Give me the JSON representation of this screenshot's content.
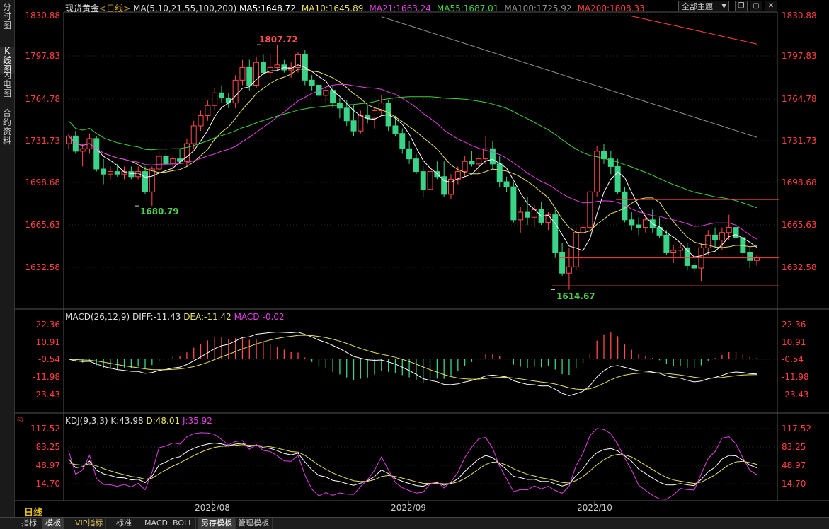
{
  "sidebar": {
    "tabs": [
      {
        "label": "分时图",
        "active": false
      },
      {
        "label": "K线图",
        "active": true
      },
      {
        "label": "闪电图",
        "active": false
      },
      {
        "label": "合约资料",
        "active": false
      }
    ]
  },
  "header": {
    "symbol": "现货黄金",
    "period_tag": "<日线>",
    "ma_params": "MA(5,10,21,55,100,200)",
    "ma": [
      {
        "label": "MA5:1648.72",
        "color": "#ffffff"
      },
      {
        "label": "MA10:1645.89",
        "color": "#e8e060"
      },
      {
        "label": "MA21:1663.24",
        "color": "#e040e0"
      },
      {
        "label": "MA55:1687.01",
        "color": "#40d040"
      },
      {
        "label": "MA100:1725.92",
        "color": "#909090"
      },
      {
        "label": "MA200:1808.33",
        "color": "#ff4040"
      }
    ],
    "theme_select": "全部主题",
    "buttons": [
      "restore-icon",
      "maximize-icon",
      "close-icon"
    ]
  },
  "price_panel": {
    "axis_labels": [
      "1830.88",
      "1797.83",
      "1764.78",
      "1731.73",
      "1698.68",
      "1665.63",
      "1632.58"
    ],
    "annotations": [
      {
        "text": "1807.72",
        "color": "#ff5050"
      },
      {
        "text": "1680.79",
        "color": "#50d050"
      },
      {
        "text": "1614.67",
        "color": "#50d050"
      }
    ]
  },
  "macd_panel": {
    "title": "MACD(26,12,9)",
    "diff": "DIFF:-11.43",
    "dea": "DEA:-11.42",
    "macd": "MACD:-0.02",
    "axis_labels": [
      "22.36",
      "10.91",
      "-0.54",
      "-11.98",
      "-23.43"
    ]
  },
  "kdj_panel": {
    "title": "KDJ(9,3,3)",
    "k": "K:43.98",
    "d": "D:48.01",
    "j": "J:35.92",
    "axis_labels": [
      "117.52",
      "83.25",
      "48.97",
      "14.70"
    ]
  },
  "time_axis": [
    "2022/08",
    "2022/09",
    "2022/10"
  ],
  "period": "日线",
  "bottom_tabs": [
    {
      "label": "指标",
      "active": false
    },
    {
      "label": "模板",
      "active": true
    },
    {
      "label": "VIP指标",
      "active": false,
      "vip": true
    },
    {
      "label": "标准",
      "active": false
    },
    {
      "label": "MACD",
      "active": false
    },
    {
      "label": "BOLL",
      "active": false
    },
    {
      "label": "另存模板",
      "active": true
    },
    {
      "label": "管理模板",
      "active": false
    }
  ],
  "chart_data": {
    "type": "candlestick",
    "x_labels": [
      "2022/08",
      "2022/09",
      "2022/10"
    ],
    "price_range": [
      1614.67,
      1830.88
    ],
    "candles": [
      [
        1730,
        1738,
        1726,
        1736
      ],
      [
        1736,
        1740,
        1722,
        1724
      ],
      [
        1724,
        1730,
        1712,
        1726
      ],
      [
        1726,
        1738,
        1722,
        1734
      ],
      [
        1734,
        1736,
        1708,
        1710
      ],
      [
        1710,
        1718,
        1698,
        1706
      ],
      [
        1706,
        1712,
        1702,
        1708
      ],
      [
        1708,
        1714,
        1704,
        1706
      ],
      [
        1706,
        1712,
        1702,
        1708
      ],
      [
        1708,
        1712,
        1702,
        1704
      ],
      [
        1704,
        1712,
        1702,
        1708
      ],
      [
        1708,
        1712,
        1690,
        1692
      ],
      [
        1692,
        1712,
        1681,
        1710
      ],
      [
        1710,
        1724,
        1706,
        1720
      ],
      [
        1720,
        1730,
        1712,
        1714
      ],
      [
        1714,
        1720,
        1708,
        1718
      ],
      [
        1718,
        1726,
        1714,
        1716
      ],
      [
        1716,
        1734,
        1712,
        1730
      ],
      [
        1730,
        1748,
        1726,
        1744
      ],
      [
        1744,
        1756,
        1740,
        1752
      ],
      [
        1752,
        1764,
        1748,
        1760
      ],
      [
        1760,
        1774,
        1756,
        1770
      ],
      [
        1770,
        1776,
        1762,
        1766
      ],
      [
        1766,
        1770,
        1758,
        1762
      ],
      [
        1762,
        1784,
        1758,
        1780
      ],
      [
        1780,
        1796,
        1776,
        1790
      ],
      [
        1790,
        1796,
        1772,
        1776
      ],
      [
        1776,
        1798,
        1774,
        1794
      ],
      [
        1794,
        1800,
        1784,
        1786
      ],
      [
        1786,
        1800,
        1782,
        1790
      ],
      [
        1790,
        1808,
        1788,
        1792
      ],
      [
        1792,
        1796,
        1786,
        1788
      ],
      [
        1788,
        1794,
        1782,
        1790
      ],
      [
        1790,
        1802,
        1786,
        1800
      ],
      [
        1800,
        1804,
        1776,
        1780
      ],
      [
        1780,
        1784,
        1772,
        1776
      ],
      [
        1776,
        1782,
        1764,
        1768
      ],
      [
        1768,
        1776,
        1762,
        1772
      ],
      [
        1772,
        1776,
        1758,
        1762
      ],
      [
        1762,
        1766,
        1750,
        1758
      ],
      [
        1758,
        1764,
        1744,
        1748
      ],
      [
        1748,
        1760,
        1736,
        1740
      ],
      [
        1740,
        1756,
        1738,
        1752
      ],
      [
        1752,
        1760,
        1746,
        1750
      ],
      [
        1750,
        1758,
        1742,
        1756
      ],
      [
        1756,
        1768,
        1752,
        1762
      ],
      [
        1762,
        1764,
        1740,
        1744
      ],
      [
        1744,
        1752,
        1736,
        1738
      ],
      [
        1738,
        1742,
        1722,
        1726
      ],
      [
        1726,
        1732,
        1714,
        1718
      ],
      [
        1718,
        1722,
        1706,
        1708
      ],
      [
        1708,
        1712,
        1688,
        1694
      ],
      [
        1694,
        1712,
        1690,
        1708
      ],
      [
        1708,
        1716,
        1702,
        1704
      ],
      [
        1704,
        1716,
        1688,
        1690
      ],
      [
        1690,
        1706,
        1686,
        1702
      ],
      [
        1702,
        1712,
        1698,
        1708
      ],
      [
        1708,
        1720,
        1704,
        1716
      ],
      [
        1716,
        1724,
        1712,
        1714
      ],
      [
        1714,
        1720,
        1706,
        1718
      ],
      [
        1718,
        1736,
        1714,
        1726
      ],
      [
        1726,
        1732,
        1710,
        1714
      ],
      [
        1714,
        1720,
        1696,
        1700
      ],
      [
        1700,
        1704,
        1692,
        1696
      ],
      [
        1696,
        1700,
        1668,
        1670
      ],
      [
        1670,
        1680,
        1660,
        1676
      ],
      [
        1676,
        1688,
        1666,
        1672
      ],
      [
        1672,
        1682,
        1664,
        1678
      ],
      [
        1678,
        1684,
        1666,
        1668
      ],
      [
        1668,
        1676,
        1662,
        1674
      ],
      [
        1674,
        1678,
        1640,
        1644
      ],
      [
        1644,
        1652,
        1626,
        1628
      ],
      [
        1628,
        1648,
        1615,
        1633
      ],
      [
        1633,
        1664,
        1630,
        1660
      ],
      [
        1660,
        1668,
        1654,
        1664
      ],
      [
        1664,
        1694,
        1660,
        1692
      ],
      [
        1692,
        1728,
        1688,
        1724
      ],
      [
        1724,
        1730,
        1714,
        1718
      ],
      [
        1718,
        1724,
        1706,
        1712
      ],
      [
        1712,
        1718,
        1690,
        1692
      ],
      [
        1692,
        1696,
        1668,
        1670
      ],
      [
        1670,
        1676,
        1662,
        1666
      ],
      [
        1666,
        1672,
        1658,
        1664
      ],
      [
        1664,
        1674,
        1660,
        1670
      ],
      [
        1670,
        1678,
        1660,
        1664
      ],
      [
        1664,
        1672,
        1656,
        1658
      ],
      [
        1658,
        1662,
        1642,
        1644
      ],
      [
        1644,
        1650,
        1636,
        1646
      ],
      [
        1646,
        1652,
        1640,
        1648
      ],
      [
        1648,
        1652,
        1630,
        1634
      ],
      [
        1634,
        1640,
        1628,
        1632
      ],
      [
        1632,
        1652,
        1622,
        1648
      ],
      [
        1648,
        1662,
        1642,
        1658
      ],
      [
        1658,
        1664,
        1648,
        1654
      ],
      [
        1654,
        1664,
        1646,
        1660
      ],
      [
        1660,
        1674,
        1654,
        1664
      ],
      [
        1664,
        1668,
        1652,
        1656
      ],
      [
        1656,
        1662,
        1640,
        1644
      ],
      [
        1644,
        1648,
        1632,
        1638
      ],
      [
        1638,
        1642,
        1634,
        1640
      ]
    ]
  }
}
